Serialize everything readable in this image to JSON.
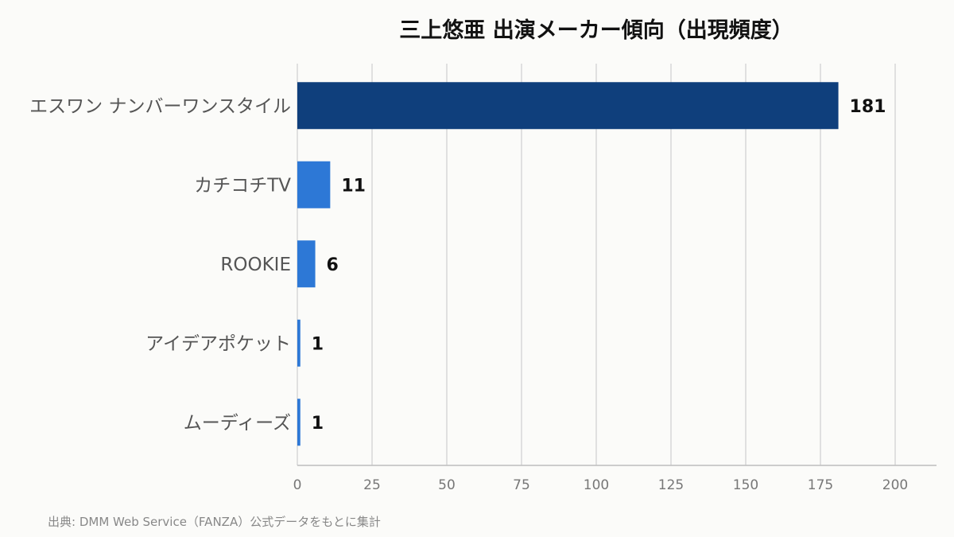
{
  "chart_data": {
    "type": "bar",
    "orientation": "horizontal",
    "title": "三上悠亜 出演メーカー傾向（出現頻度）",
    "categories": [
      "エスワン ナンバーワンスタイル",
      "カチコチTV",
      "ROOKIE",
      "アイデアポケット",
      "ムーディーズ"
    ],
    "values": [
      181,
      11,
      6,
      1,
      1
    ],
    "data_labels": [
      "181",
      "11",
      "6",
      "1",
      "1"
    ],
    "xlim": [
      0,
      210
    ],
    "xticks": [
      0,
      25,
      50,
      75,
      100,
      125,
      150,
      175,
      200
    ],
    "xtick_labels": [
      "0",
      "25",
      "50",
      "75",
      "100",
      "125",
      "150",
      "175",
      "200"
    ],
    "grid": "vertical",
    "colors": {
      "top_bar": "#0f3f7c",
      "other_bars": "#2d78d6",
      "grid": "#d8d8d8",
      "axis": "#bdbdbd",
      "background": "#fbfbf9"
    }
  },
  "source": "出典: DMM Web Service（FANZA）公式データをもとに集計"
}
